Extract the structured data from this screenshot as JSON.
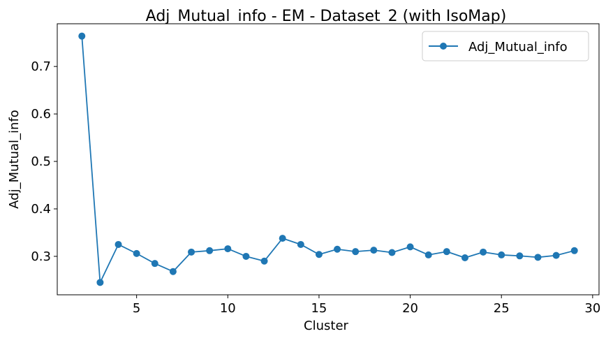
{
  "chart_data": {
    "type": "line",
    "title": "Adj_Mutual_info - EM - Dataset_2 (with IsoMap)",
    "xlabel": "Cluster",
    "ylabel": "Adj_Mutual_info",
    "xlim": [
      0.65,
      30.35
    ],
    "ylim": [
      0.219,
      0.79
    ],
    "xticks": [
      5,
      10,
      15,
      20,
      25,
      30
    ],
    "xtick_labels": [
      "5",
      "10",
      "15",
      "20",
      "25",
      "30"
    ],
    "yticks": [
      0.3,
      0.4,
      0.5,
      0.6,
      0.7
    ],
    "ytick_labels": [
      "0.3",
      "0.4",
      "0.5",
      "0.6",
      "0.7"
    ],
    "grid": false,
    "legend_position": "top-right",
    "series": [
      {
        "name": "Adj_Mutual_info",
        "color": "#1f77b4",
        "marker": "circle",
        "x": [
          2,
          3,
          4,
          5,
          6,
          7,
          8,
          9,
          10,
          11,
          12,
          13,
          14,
          15,
          16,
          17,
          18,
          19,
          20,
          21,
          22,
          23,
          24,
          25,
          26,
          27,
          28,
          29
        ],
        "y": [
          0.764,
          0.245,
          0.325,
          0.306,
          0.285,
          0.268,
          0.309,
          0.312,
          0.316,
          0.3,
          0.29,
          0.338,
          0.325,
          0.304,
          0.315,
          0.31,
          0.313,
          0.308,
          0.32,
          0.303,
          0.31,
          0.297,
          0.309,
          0.303,
          0.301,
          0.298,
          0.302,
          0.312
        ]
      }
    ]
  }
}
